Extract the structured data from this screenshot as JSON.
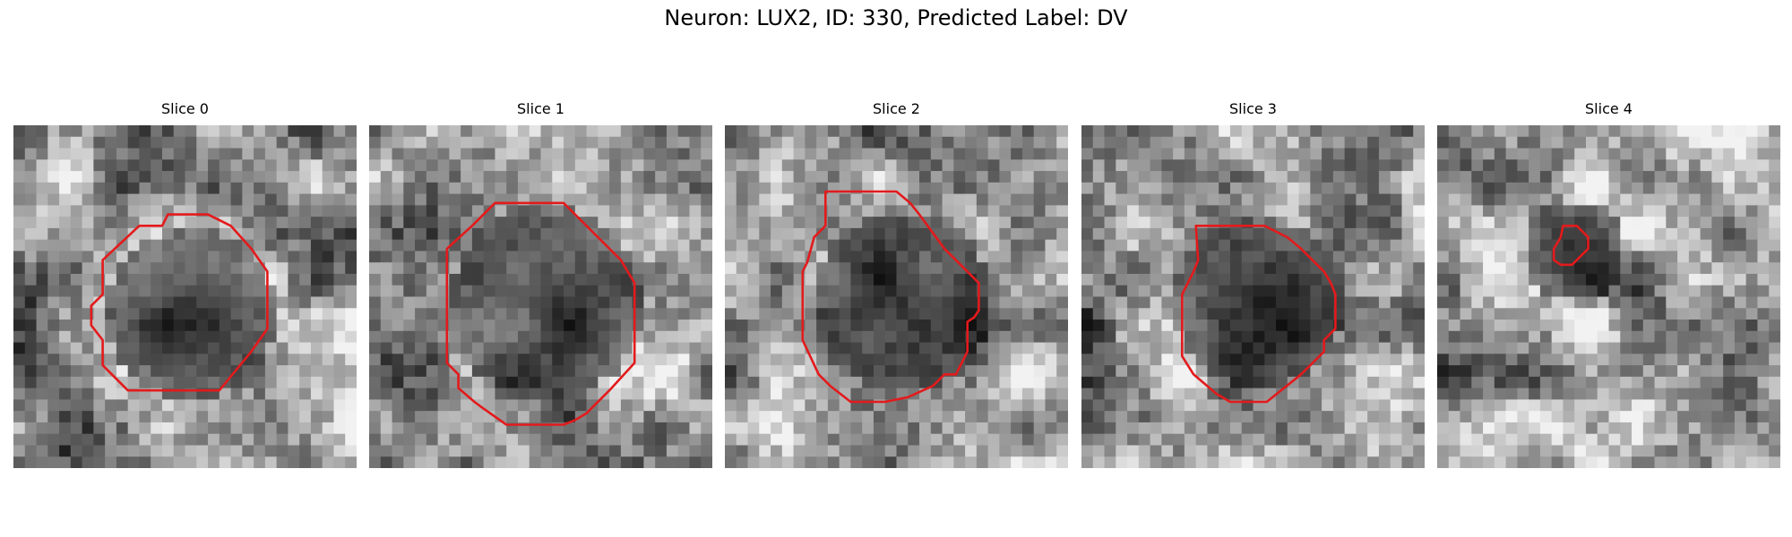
{
  "figure": {
    "title": "Neuron: LUX2, ID: 330, Predicted Label: DV"
  },
  "panels": [
    {
      "title": "Slice 0",
      "contour_color": "#e31a1c"
    },
    {
      "title": "Slice 1",
      "contour_color": "#e31a1c"
    },
    {
      "title": "Slice 2",
      "contour_color": "#e31a1c"
    },
    {
      "title": "Slice 3",
      "contour_color": "#e31a1c"
    },
    {
      "title": "Slice 4",
      "contour_color": "#e31a1c"
    }
  ],
  "colormap": "gray"
}
